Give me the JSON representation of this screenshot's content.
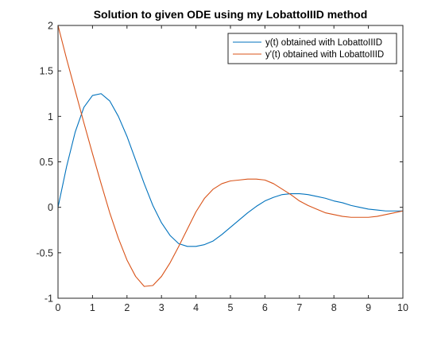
{
  "chart_data": {
    "type": "line",
    "title": "Solution to given ODE using my LobattoIIID method",
    "xlabel": "",
    "ylabel": "",
    "xlim": [
      0,
      10
    ],
    "ylim": [
      -1,
      2
    ],
    "xticks": [
      "0",
      "1",
      "2",
      "3",
      "4",
      "5",
      "6",
      "7",
      "8",
      "9",
      "10"
    ],
    "yticks": [
      "-1",
      "-0.5",
      "0",
      "0.5",
      "1",
      "1.5",
      "2"
    ],
    "grid": false,
    "legend_position": "top-right",
    "series": [
      {
        "name": "y(t) obtained with LobattoIIID",
        "color": "#0072BD",
        "x": [
          0,
          0.25,
          0.5,
          0.75,
          1,
          1.25,
          1.5,
          1.75,
          2,
          2.25,
          2.5,
          2.75,
          3,
          3.25,
          3.5,
          3.75,
          4,
          4.25,
          4.5,
          4.75,
          5,
          5.25,
          5.5,
          5.75,
          6,
          6.25,
          6.5,
          6.75,
          7,
          7.25,
          7.5,
          7.75,
          8,
          8.25,
          8.5,
          8.75,
          9,
          9.25,
          9.5,
          9.75,
          10
        ],
        "values": [
          0,
          0.45,
          0.83,
          1.1,
          1.23,
          1.25,
          1.17,
          1.0,
          0.78,
          0.52,
          0.26,
          0.02,
          -0.17,
          -0.31,
          -0.4,
          -0.43,
          -0.43,
          -0.41,
          -0.37,
          -0.3,
          -0.22,
          -0.14,
          -0.06,
          0.01,
          0.07,
          0.11,
          0.14,
          0.15,
          0.15,
          0.14,
          0.12,
          0.1,
          0.07,
          0.05,
          0.02,
          0.0,
          -0.02,
          -0.03,
          -0.04,
          -0.04,
          -0.04
        ]
      },
      {
        "name": "y'(t) obtained with LobattoIIID",
        "color": "#D95319",
        "x": [
          0,
          0.25,
          0.5,
          0.75,
          1,
          1.25,
          1.5,
          1.75,
          2,
          2.25,
          2.5,
          2.75,
          3,
          3.25,
          3.5,
          3.75,
          4,
          4.25,
          4.5,
          4.75,
          5,
          5.25,
          5.5,
          5.75,
          6,
          6.25,
          6.5,
          6.75,
          7,
          7.25,
          7.5,
          7.75,
          8,
          8.25,
          8.5,
          8.75,
          9,
          9.25,
          9.5,
          9.75,
          10
        ],
        "values": [
          2.0,
          1.63,
          1.28,
          0.93,
          0.59,
          0.26,
          -0.06,
          -0.34,
          -0.58,
          -0.76,
          -0.87,
          -0.86,
          -0.76,
          -0.61,
          -0.43,
          -0.24,
          -0.05,
          0.1,
          0.2,
          0.26,
          0.29,
          0.3,
          0.31,
          0.31,
          0.3,
          0.26,
          0.2,
          0.14,
          0.07,
          0.02,
          -0.02,
          -0.06,
          -0.08,
          -0.1,
          -0.11,
          -0.11,
          -0.11,
          -0.1,
          -0.08,
          -0.06,
          -0.04
        ]
      }
    ]
  }
}
